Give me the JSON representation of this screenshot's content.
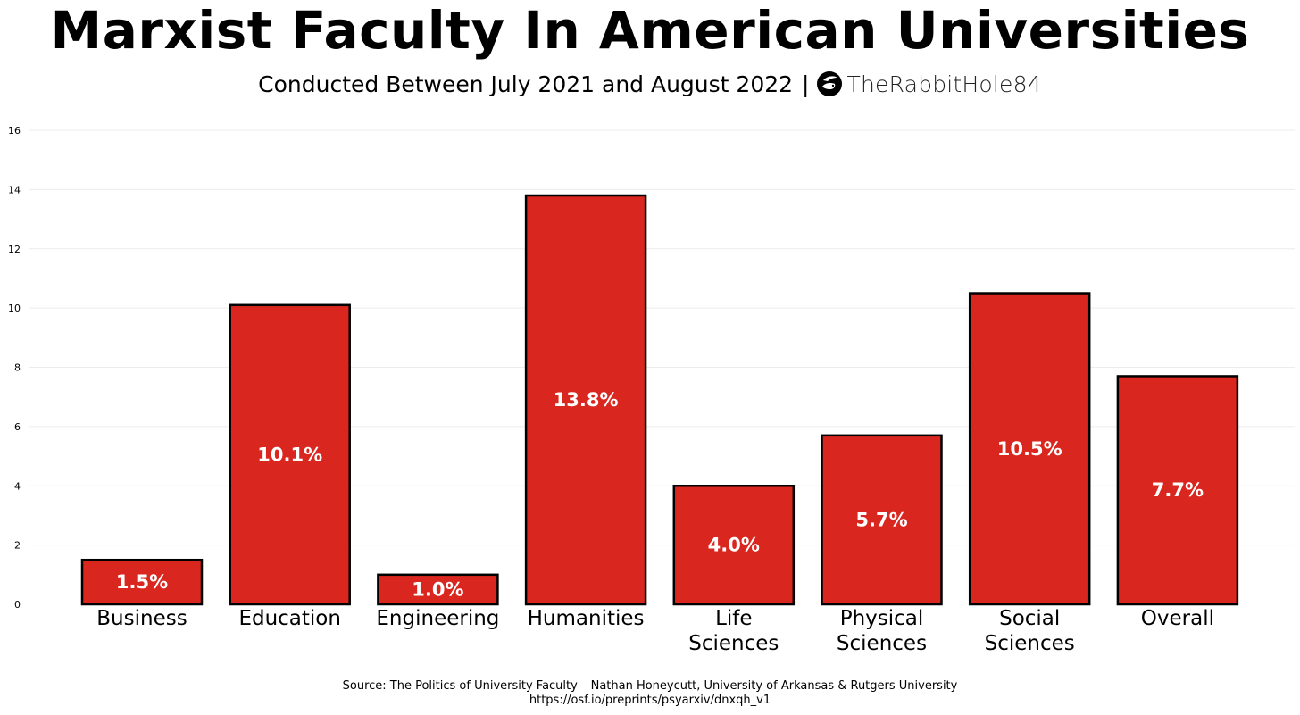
{
  "title": "Marxist Faculty In American Universities",
  "subtitle": "Conducted Between July 2021 and August 2022",
  "separator": "|",
  "brand": {
    "name": "TheRabbitHole84",
    "icon": "rabbit-logo-icon"
  },
  "source": {
    "line1": "Source: The Politics of University Faculty – Nathan Honeycutt, University of Arkansas & Rutgers University",
    "line2": "https://osf.io/preprints/psyarxiv/dnxqh_v1"
  },
  "colors": {
    "bar_fill": "#d9261e",
    "bar_stroke": "#000000",
    "bar_label": "#ffffff",
    "grid": "#ececec"
  },
  "chart_data": {
    "type": "bar",
    "title": "Marxist Faculty In American Universities",
    "xlabel": "",
    "ylabel": "",
    "ylim": [
      0,
      16
    ],
    "yticks": [
      0,
      2,
      4,
      6,
      8,
      10,
      12,
      14,
      16
    ],
    "grid": true,
    "categories": [
      [
        "Business"
      ],
      [
        "Education"
      ],
      [
        "Engineering"
      ],
      [
        "Humanities"
      ],
      [
        "Life",
        "Sciences"
      ],
      [
        "Physical",
        "Sciences"
      ],
      [
        "Social",
        "Sciences"
      ],
      [
        "Overall"
      ]
    ],
    "values": [
      1.5,
      10.1,
      1.0,
      13.8,
      4.0,
      5.7,
      10.5,
      7.7
    ],
    "value_labels": [
      "1.5%",
      "10.1%",
      "1.0%",
      "13.8%",
      "4.0%",
      "5.7%",
      "10.5%",
      "7.7%"
    ]
  }
}
